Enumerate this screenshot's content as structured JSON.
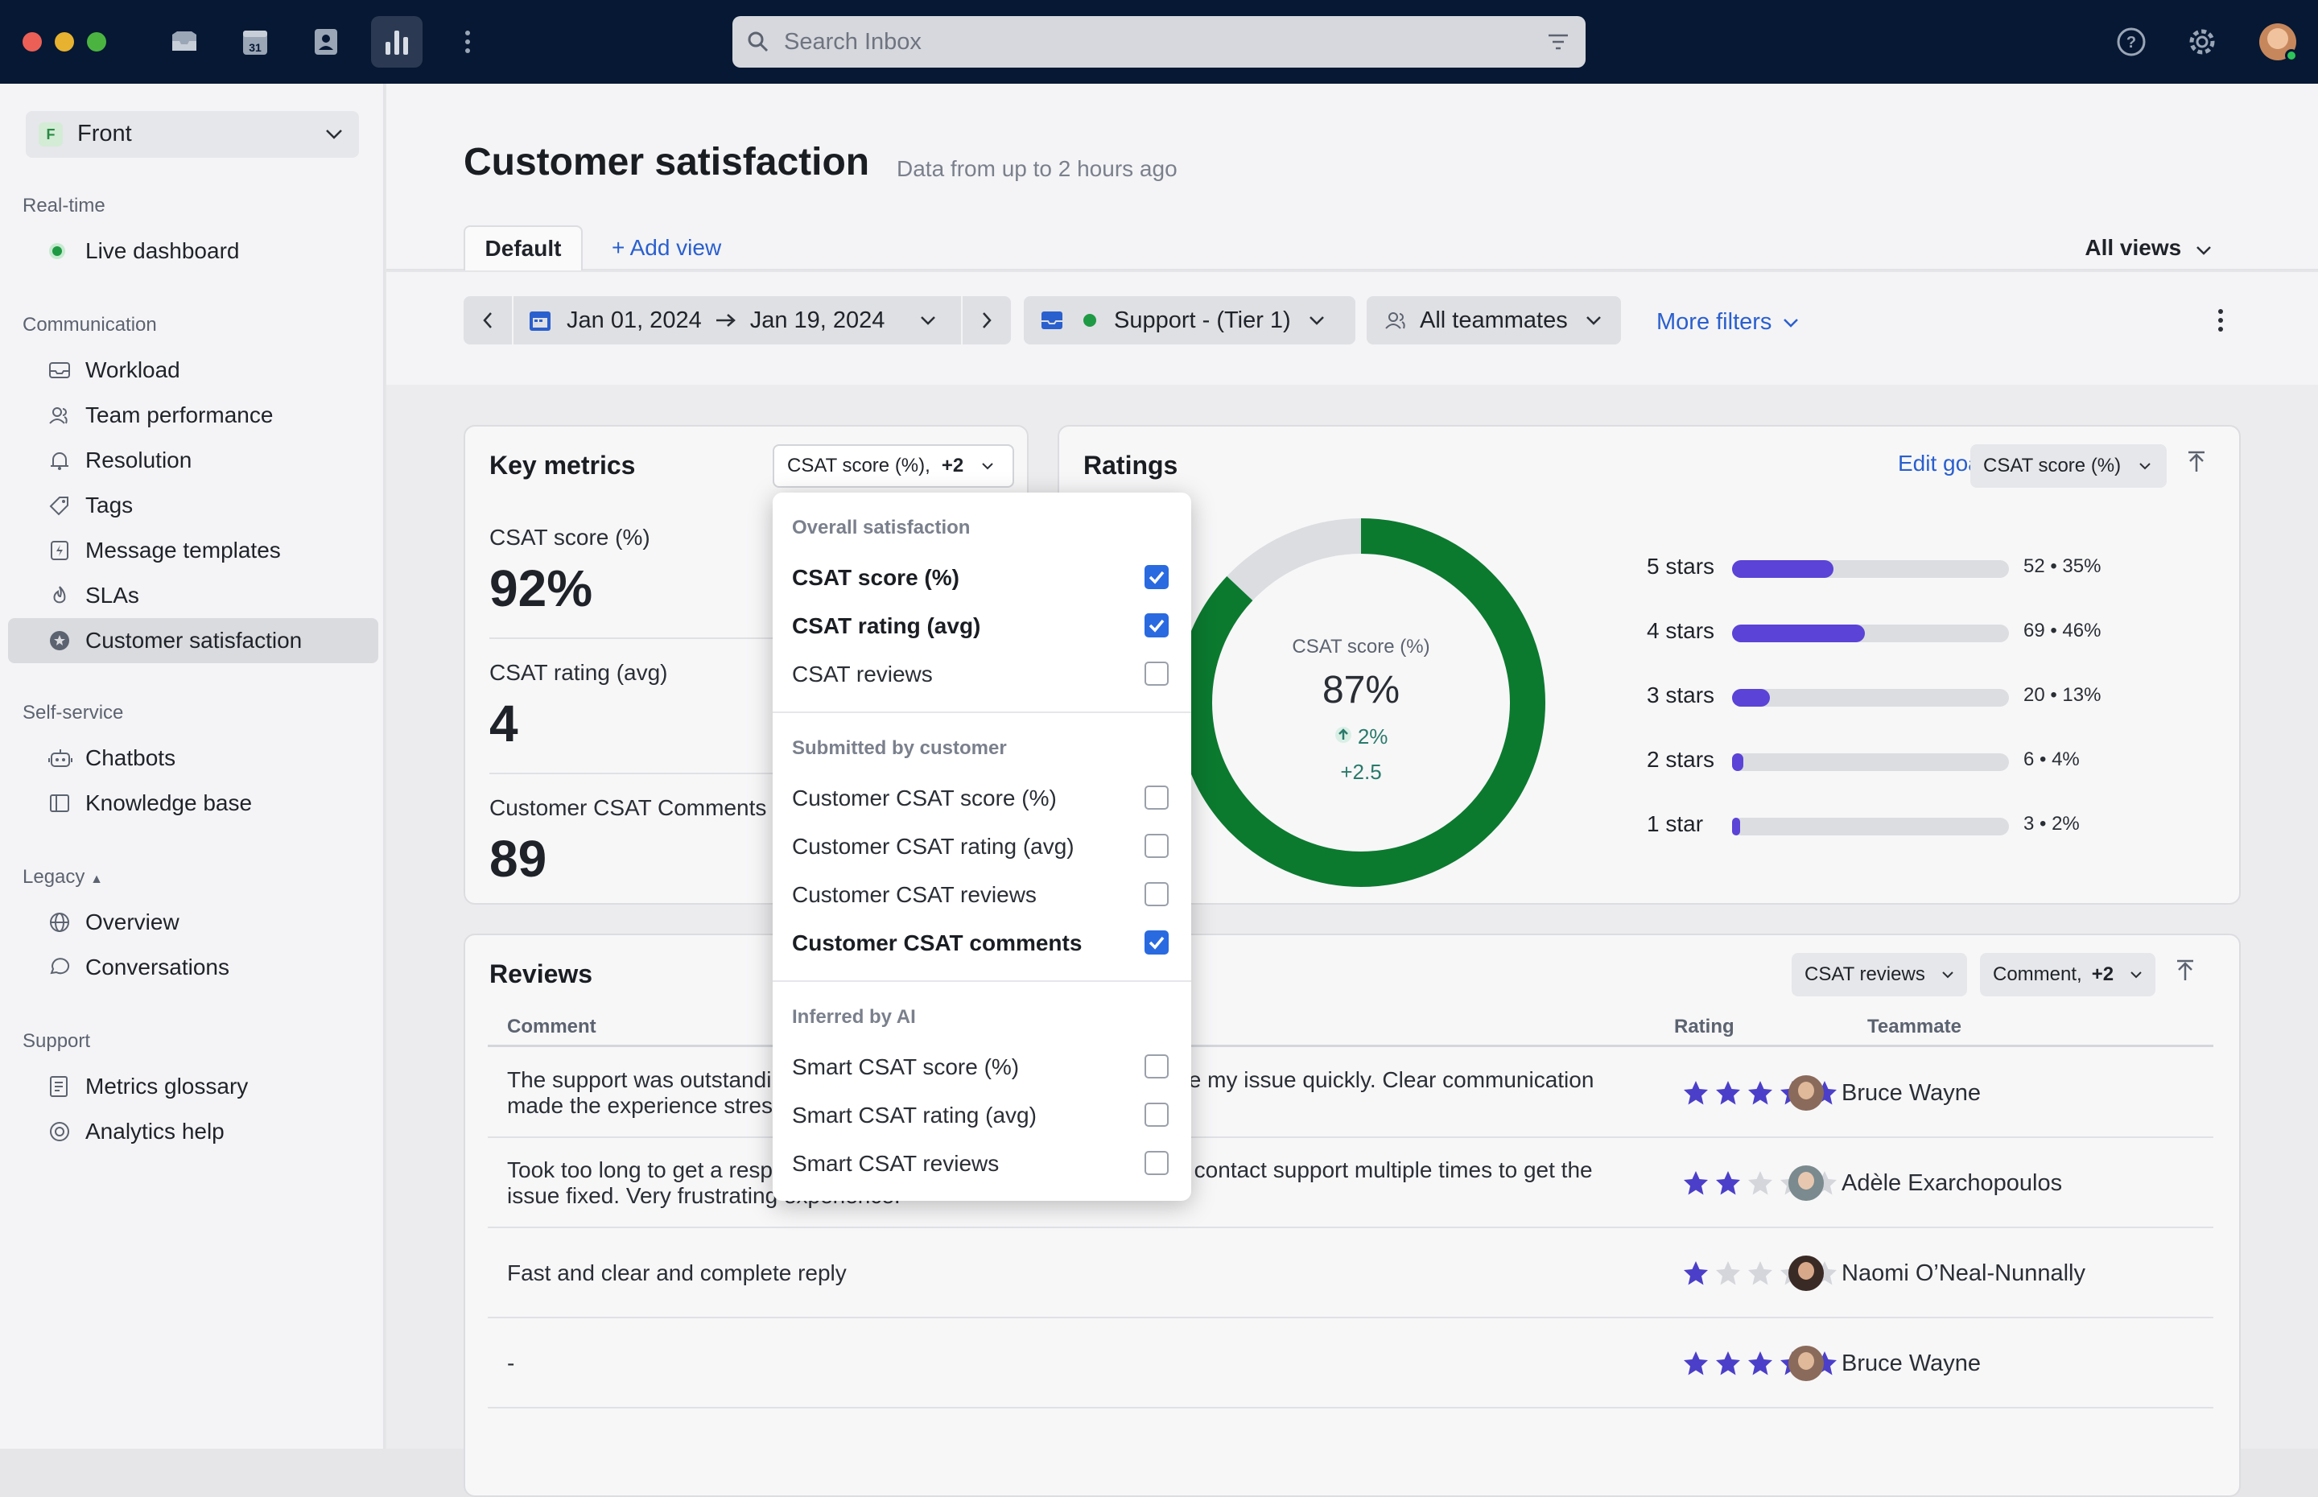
{
  "topbar": {
    "search_placeholder": "Search Inbox",
    "calendar_day": "31"
  },
  "sidebar": {
    "workspace": {
      "initial": "F",
      "name": "Front"
    },
    "sections": [
      {
        "title": "Real-time",
        "items": [
          "Live dashboard"
        ]
      },
      {
        "title": "Communication",
        "items": [
          "Workload",
          "Team performance",
          "Resolution",
          "Tags",
          "Message templates",
          "SLAs",
          "Customer satisfaction"
        ]
      },
      {
        "title": "Self-service",
        "items": [
          "Chatbots",
          "Knowledge base"
        ]
      },
      {
        "title": "Legacy",
        "items": [
          "Overview",
          "Conversations"
        ]
      },
      {
        "title": "Support",
        "items": [
          "Metrics glossary",
          "Analytics help"
        ]
      }
    ],
    "active_item": "Customer satisfaction"
  },
  "header": {
    "title": "Customer satisfaction",
    "subtitle": "Data from up to 2 hours ago",
    "tab_default": "Default",
    "add_view": "+ Add view",
    "all_views": "All views"
  },
  "filters": {
    "date_start": "Jan 01, 2024",
    "date_end": "Jan 19, 2024",
    "inbox": "Support -  (Tier 1)",
    "teammates": "All teammates",
    "more_filters": "More filters"
  },
  "key_metrics": {
    "title": "Key metrics",
    "selector": "CSAT score (%),",
    "selector_extra": "+2",
    "metrics": [
      {
        "label": "CSAT score (%)",
        "value": "92%"
      },
      {
        "label": "CSAT rating (avg)",
        "value": "4"
      },
      {
        "label": "Customer CSAT Comments",
        "value": "89"
      }
    ]
  },
  "ratings": {
    "title": "Ratings",
    "edit_goal": "Edit goal",
    "selector": "CSAT score (%)",
    "donut": {
      "label": "CSAT score (%)",
      "value": "87%",
      "change": "2%",
      "delta": "+2.5",
      "percent": 87
    },
    "bars": [
      {
        "label": "5 stars",
        "count": 52,
        "percent": 35,
        "text": "52 • 35%"
      },
      {
        "label": "4 stars",
        "count": 69,
        "percent": 46,
        "text": "69 • 46%"
      },
      {
        "label": "3 stars",
        "count": 20,
        "percent": 13,
        "text": "20 • 13%"
      },
      {
        "label": "2 stars",
        "count": 6,
        "percent": 4,
        "text": "6 • 4%"
      },
      {
        "label": "1 star",
        "count": 3,
        "percent": 2,
        "text": "3 • 2%"
      }
    ]
  },
  "reviews": {
    "title": "Reviews",
    "selector1": "CSAT reviews",
    "selector2": "Comment,",
    "selector2_extra": "+2",
    "columns": {
      "comment": "Comment",
      "rating": "Rating",
      "teammate": "Teammate"
    },
    "rows": [
      {
        "comment": "The support was outstanding, they went above and beyond to resolve my issue quickly. Clear communication made the experience stress-free. Truly...",
        "rating": 5,
        "teammate": "Bruce Wayne"
      },
      {
        "comment": "Took too long to get a response and the solution didn't work. I had to contact support multiple times to get the issue fixed. Very frustrating experience.",
        "rating": 2,
        "teammate": "Adèle Exarchopoulos"
      },
      {
        "comment": "Fast and clear and complete reply",
        "rating": 1,
        "teammate": "Naomi O’Neal-Nunnally"
      },
      {
        "comment": "-",
        "rating": 5,
        "teammate": "Bruce Wayne"
      }
    ]
  },
  "dropdown": {
    "sections": [
      {
        "title": "Overall satisfaction",
        "items": [
          {
            "label": "CSAT score (%)",
            "checked": true
          },
          {
            "label": "CSAT rating (avg)",
            "checked": true
          },
          {
            "label": "CSAT reviews",
            "checked": false
          }
        ]
      },
      {
        "title": "Submitted by customer",
        "items": [
          {
            "label": "Customer CSAT score (%)",
            "checked": false
          },
          {
            "label": "Customer CSAT rating (avg)",
            "checked": false
          },
          {
            "label": "Customer CSAT reviews",
            "checked": false
          },
          {
            "label": "Customer CSAT comments",
            "checked": true
          }
        ]
      },
      {
        "title": "Inferred by AI",
        "items": [
          {
            "label": "Smart CSAT score (%)",
            "checked": false
          },
          {
            "label": "Smart CSAT rating (avg)",
            "checked": false
          },
          {
            "label": "Smart CSAT reviews",
            "checked": false
          }
        ]
      }
    ]
  },
  "colors": {
    "accent": "#2a6ae0",
    "bar": "#5a43d6",
    "donut": "#0b7a2f",
    "star": "#4b3fc9"
  }
}
